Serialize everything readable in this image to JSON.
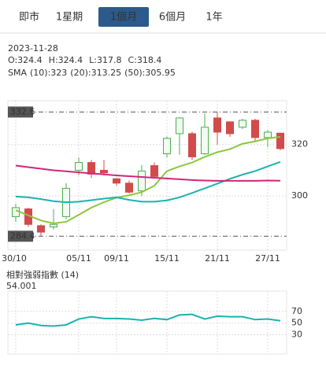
{
  "tabs": {
    "items": [
      "即市",
      "1星期",
      "1個月",
      "6個月",
      "1年"
    ],
    "selected": 2
  },
  "header": {
    "date": "2023-11-28",
    "ohlc": [
      "O:324.4",
      "H:324.4",
      "L:317.8",
      "C:318.4"
    ],
    "sma_label": "SMA",
    "sma": [
      "(10):323",
      "(20):313.25",
      "(50):305.95"
    ]
  },
  "chart_data": [
    {
      "type": "candlestick",
      "categories": [
        "30/10",
        null,
        null,
        null,
        null,
        "05/11",
        null,
        null,
        "09/11",
        null,
        null,
        null,
        "15/11",
        null,
        null,
        null,
        "21/11",
        null,
        null,
        null,
        "27/11",
        null
      ],
      "open": [
        292,
        295,
        288.5,
        288,
        292,
        310,
        313,
        310,
        306.7,
        305,
        302,
        311.8,
        316.4,
        324.2,
        324.2,
        316.4,
        330.3,
        328.8,
        326.7,
        329.4,
        322.7,
        324.4
      ],
      "high": [
        297,
        295.5,
        289,
        295,
        305,
        315,
        314,
        314,
        307,
        306,
        312,
        313,
        323,
        330.5,
        325,
        332,
        332.6,
        329,
        330,
        330,
        325.5,
        324.4
      ],
      "low": [
        290,
        288,
        284.4,
        287,
        291,
        308,
        307,
        308,
        304,
        301,
        300,
        307,
        315,
        316,
        314,
        316,
        320,
        323,
        326,
        321,
        319,
        317.8
      ],
      "close": [
        295.5,
        289,
        286,
        289,
        303,
        313,
        308.5,
        309,
        305,
        301.5,
        309.7,
        307.6,
        322.4,
        330.3,
        315.2,
        326.7,
        324.8,
        324.2,
        329.4,
        322.7,
        324.8,
        318.4
      ],
      "up_color": "#4cae4c",
      "down_color": "#d24b4b",
      "lines": [
        {
          "color": "#8cc63f",
          "values": [
            294.5,
            292.5,
            290.5,
            289.4,
            290,
            292.7,
            295.5,
            297.6,
            299.4,
            300.3,
            301.5,
            304,
            309.7,
            311.5,
            313,
            315.2,
            317,
            318.2,
            320.3,
            321.2,
            322.4,
            323
          ]
        },
        {
          "color": "#1ab3b0",
          "values": [
            299.8,
            299.5,
            298.8,
            298,
            297.6,
            297.8,
            298.4,
            299,
            299.5,
            298.5,
            297.8,
            297.8,
            298.3,
            299.5,
            301.2,
            303,
            304.8,
            306.7,
            308.3,
            309.7,
            311.5,
            313.25
          ]
        },
        {
          "color": "#d0257a",
          "values": [
            311.8,
            311.2,
            310.6,
            310,
            309.6,
            309.2,
            308.8,
            308.4,
            308,
            307.7,
            307.4,
            307.1,
            306.8,
            306.5,
            306.2,
            306,
            305.9,
            305.9,
            305.9,
            305.9,
            306,
            305.95
          ]
        }
      ],
      "ylim": [
        279,
        337
      ],
      "yticks": [
        320,
        300
      ],
      "high_line": 332.6,
      "low_line": 284.4,
      "grid": true
    },
    {
      "type": "line",
      "title": "相對強弱指數 (14)",
      "current": "54.001",
      "color": "#1ab3b0",
      "values": [
        47,
        50,
        46,
        45,
        47,
        57,
        61,
        58,
        58,
        57,
        55,
        58,
        56,
        64,
        65,
        57,
        62,
        61,
        61,
        56,
        57,
        54.001
      ],
      "ylim": [
        -3,
        105
      ],
      "yticks": [
        70,
        50,
        30
      ],
      "grid": true
    }
  ]
}
